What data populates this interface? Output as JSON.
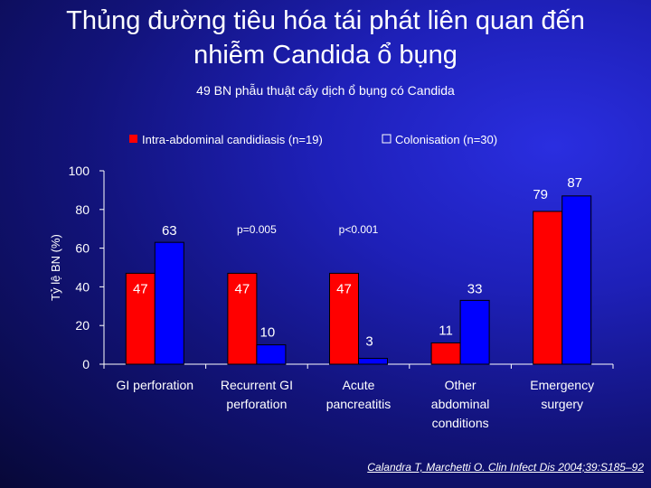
{
  "slide": {
    "title_line1": "Thủng đường tiêu hóa tái phát liên quan đến",
    "title_line2": "nhiễm Candida ổ bụng",
    "subtitle": "49  BN phẫu thuật cấy dịch ổ bụng có Candida",
    "citation": "Calandra T, Marchetti O. Clin Infect Dis 2004;39:S185–92"
  },
  "chart_data": {
    "type": "bar",
    "ylabel": "Tỷ lệ BN (%)",
    "ylim": [
      0,
      100
    ],
    "yticks": [
      0,
      20,
      40,
      60,
      80,
      100
    ],
    "categories": [
      "GI perforation",
      "Recurrent GI perforation",
      "Acute pancreatitis",
      "Other abdominal conditions",
      "Emergency surgery"
    ],
    "category_lines": [
      [
        "GI perforation"
      ],
      [
        "Recurrent GI",
        "perforation"
      ],
      [
        "Acute",
        "pancreatitis"
      ],
      [
        "Other",
        "abdominal",
        "conditions"
      ],
      [
        "Emergency",
        "surgery"
      ]
    ],
    "series": [
      {
        "name": "Intra-abdominal candidiasis (n=19)",
        "values": [
          47,
          47,
          47,
          11,
          79
        ],
        "color": "#ff0000"
      },
      {
        "name": "Colonisation (n=30)",
        "values": [
          63,
          10,
          3,
          33,
          87
        ],
        "color": "#0000ff"
      }
    ],
    "annotations": [
      {
        "text": "p=0.005",
        "category": 1
      },
      {
        "text": "p<0.001",
        "category": 2
      }
    ],
    "legend": "top",
    "grid": false
  }
}
